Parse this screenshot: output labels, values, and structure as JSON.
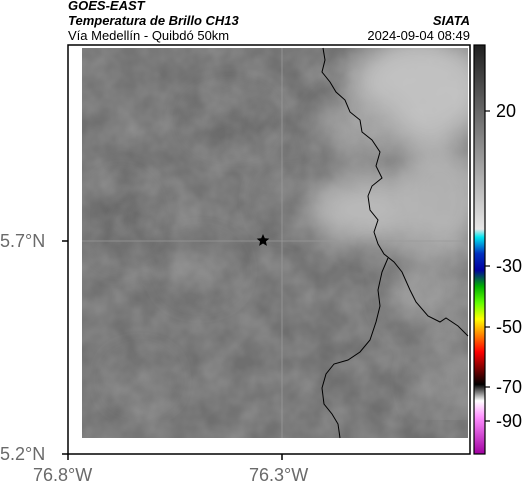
{
  "header": {
    "line1": "GOES-EAST",
    "line2": "Temperatura de Brillo CH13",
    "line3": "Vía Medellín - Quibdó 50km",
    "brand": "SIATA",
    "timestamp": "2024-09-04 08:49"
  },
  "axes": {
    "x_ticks": [
      "76.8°W",
      "76.3°W"
    ],
    "y_ticks": [
      "5.7°N",
      "5.2°N"
    ]
  },
  "colorbar": {
    "tick_labels": [
      "20",
      "-30",
      "-50",
      "-70",
      "-90"
    ],
    "tick_values": [
      20,
      -30,
      -50,
      -70,
      -90
    ],
    "range": [
      -95,
      45
    ]
  },
  "map": {
    "marker": "star-icon",
    "colors": {
      "base": "#6f6f6f",
      "bright": "#c8c8c8",
      "border_line": "#000000",
      "grid_line": "#9a9a9a"
    }
  }
}
